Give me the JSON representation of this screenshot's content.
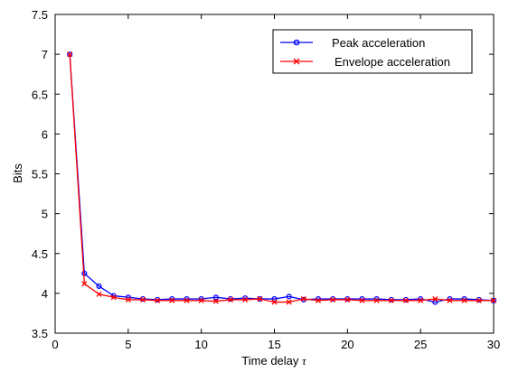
{
  "chart_data": {
    "type": "line",
    "xlabel": "Time delay",
    "xlabel_symbol": "τ",
    "ylabel": "Bits",
    "xlim": [
      0,
      30
    ],
    "ylim": [
      3.5,
      7.5
    ],
    "xticks": [
      "0",
      "5",
      "10",
      "15",
      "20",
      "25",
      "30"
    ],
    "yticks": [
      "3.5",
      "4",
      "4.5",
      "5",
      "5.5",
      "6",
      "6.5",
      "7",
      "7.5"
    ],
    "grid": false,
    "legend_position": "top-right",
    "x": [
      1,
      2,
      3,
      4,
      5,
      6,
      7,
      8,
      9,
      10,
      11,
      12,
      13,
      14,
      15,
      16,
      17,
      18,
      19,
      20,
      21,
      22,
      23,
      24,
      25,
      26,
      27,
      28,
      29,
      30
    ],
    "series": [
      {
        "name": "Peak acceleration",
        "color": "#0000ff",
        "marker": "circle",
        "values": [
          7.0,
          4.25,
          4.09,
          3.97,
          3.95,
          3.93,
          3.92,
          3.93,
          3.93,
          3.93,
          3.95,
          3.93,
          3.94,
          3.93,
          3.93,
          3.96,
          3.92,
          3.93,
          3.93,
          3.93,
          3.93,
          3.93,
          3.92,
          3.92,
          3.93,
          3.89,
          3.93,
          3.93,
          3.92,
          3.91
        ]
      },
      {
        "name": "Envelope acceleration",
        "color": "#ff0000",
        "marker": "x",
        "values": [
          7.0,
          4.12,
          3.99,
          3.95,
          3.92,
          3.92,
          3.91,
          3.91,
          3.91,
          3.91,
          3.9,
          3.92,
          3.92,
          3.93,
          3.89,
          3.89,
          3.93,
          3.91,
          3.92,
          3.92,
          3.91,
          3.91,
          3.91,
          3.91,
          3.91,
          3.93,
          3.91,
          3.91,
          3.91,
          3.91
        ]
      }
    ]
  }
}
